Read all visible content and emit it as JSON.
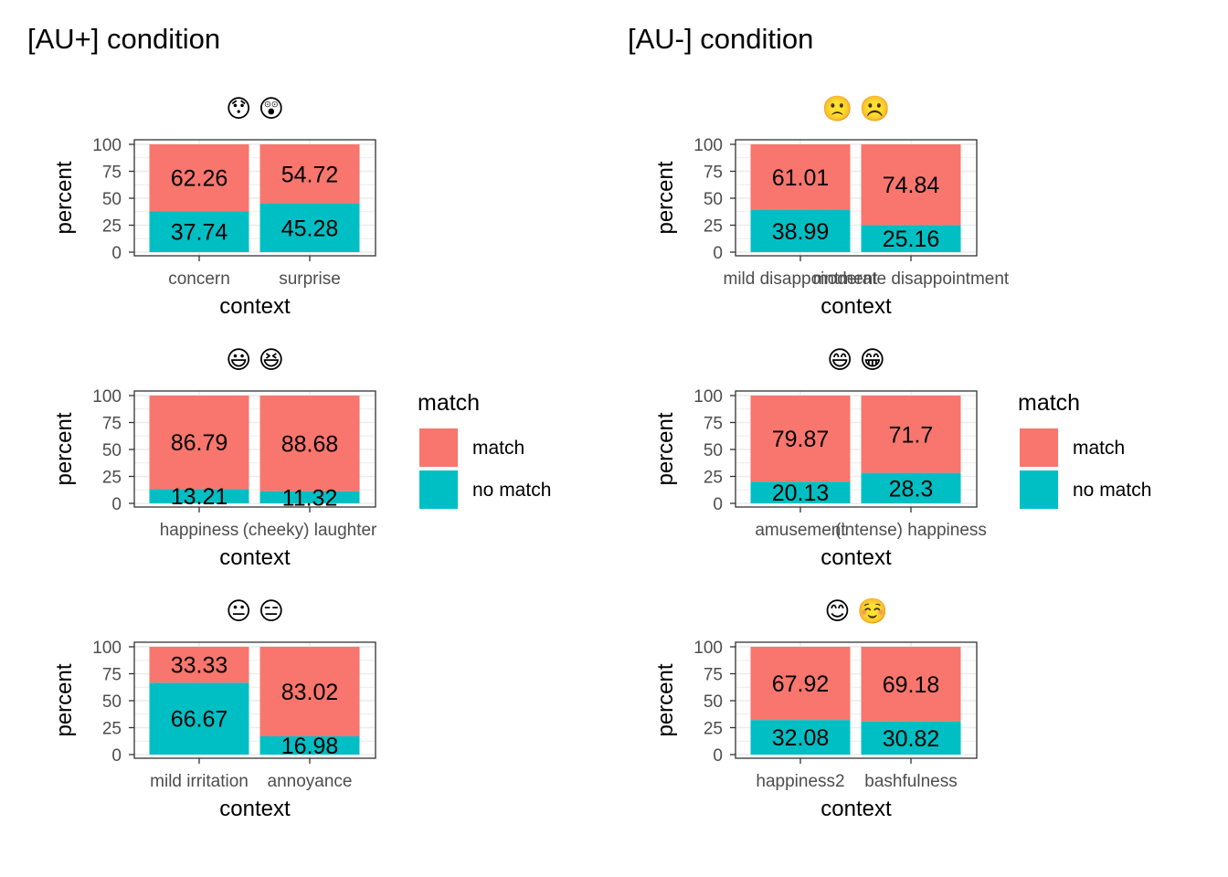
{
  "colors": {
    "match": "#F8766D",
    "no_match": "#00BFC4",
    "grid": "#ebebeb",
    "panel_border": "#333333"
  },
  "conditions": [
    {
      "title": "[AU+] condition"
    },
    {
      "title": "[AU-] condition"
    }
  ],
  "legend": {
    "title": "match",
    "items": [
      "match",
      "no match"
    ]
  },
  "chart_data": [
    {
      "type": "bar",
      "stacked": true,
      "condition": "[AU+] condition",
      "title": "😯 😲",
      "xlabel": "context",
      "ylabel": "percent",
      "ylim": [
        0,
        100
      ],
      "yticks": [
        0,
        25,
        50,
        75,
        100
      ],
      "categories": [
        "concern",
        "surprise"
      ],
      "series": [
        {
          "name": "no match",
          "values": [
            37.74,
            45.28
          ]
        },
        {
          "name": "match",
          "values": [
            62.26,
            54.72
          ]
        }
      ]
    },
    {
      "type": "bar",
      "stacked": true,
      "condition": "[AU-] condition",
      "title": "🙁 ☹️",
      "xlabel": "context",
      "ylabel": "percent",
      "ylim": [
        0,
        100
      ],
      "yticks": [
        0,
        25,
        50,
        75,
        100
      ],
      "categories": [
        "mild disappointment",
        "moderate disappointment"
      ],
      "series": [
        {
          "name": "no match",
          "values": [
            38.99,
            25.16
          ]
        },
        {
          "name": "match",
          "values": [
            61.01,
            74.84
          ]
        }
      ]
    },
    {
      "type": "bar",
      "stacked": true,
      "condition": "[AU+] condition",
      "title": "😃 😆",
      "xlabel": "context",
      "ylabel": "percent",
      "ylim": [
        0,
        100
      ],
      "yticks": [
        0,
        25,
        50,
        75,
        100
      ],
      "categories": [
        "happiness",
        "(cheeky) laughter"
      ],
      "series": [
        {
          "name": "no match",
          "values": [
            13.21,
            11.32
          ]
        },
        {
          "name": "match",
          "values": [
            86.79,
            88.68
          ]
        }
      ]
    },
    {
      "type": "bar",
      "stacked": true,
      "condition": "[AU-] condition",
      "title": "😄 😁",
      "xlabel": "context",
      "ylabel": "percent",
      "ylim": [
        0,
        100
      ],
      "yticks": [
        0,
        25,
        50,
        75,
        100
      ],
      "categories": [
        "amusement",
        "(intense) happiness"
      ],
      "series": [
        {
          "name": "no match",
          "values": [
            20.13,
            28.3
          ]
        },
        {
          "name": "match",
          "values": [
            79.87,
            71.7
          ]
        }
      ]
    },
    {
      "type": "bar",
      "stacked": true,
      "condition": "[AU+] condition",
      "title": "😐 😑",
      "xlabel": "context",
      "ylabel": "percent",
      "ylim": [
        0,
        100
      ],
      "yticks": [
        0,
        25,
        50,
        75,
        100
      ],
      "categories": [
        "mild irritation",
        "annoyance"
      ],
      "series": [
        {
          "name": "no match",
          "values": [
            66.67,
            16.98
          ]
        },
        {
          "name": "match",
          "values": [
            33.33,
            83.02
          ]
        }
      ]
    },
    {
      "type": "bar",
      "stacked": true,
      "condition": "[AU-] condition",
      "title": "😊 ☺️",
      "xlabel": "context",
      "ylabel": "percent",
      "ylim": [
        0,
        100
      ],
      "yticks": [
        0,
        25,
        50,
        75,
        100
      ],
      "categories": [
        "happiness2",
        "bashfulness"
      ],
      "series": [
        {
          "name": "no match",
          "values": [
            32.08,
            30.82
          ]
        },
        {
          "name": "match",
          "values": [
            67.92,
            69.18
          ]
        }
      ]
    }
  ]
}
